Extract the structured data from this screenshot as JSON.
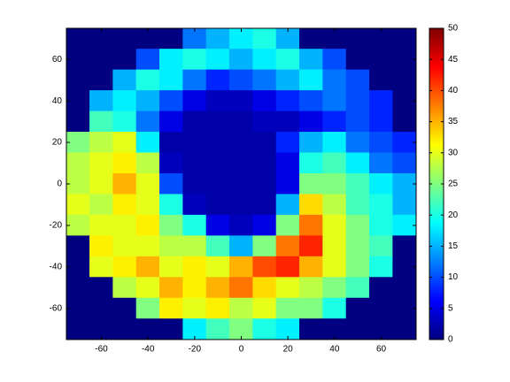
{
  "chart_data": {
    "type": "heatmap",
    "x": [
      -70,
      -60,
      -50,
      -40,
      -30,
      -20,
      -10,
      0,
      10,
      20,
      30,
      40,
      50,
      60,
      70
    ],
    "y": [
      70,
      60,
      50,
      40,
      30,
      20,
      10,
      0,
      -10,
      -20,
      -30,
      -40,
      -50,
      -60,
      -70
    ],
    "z": [
      [
        0,
        0,
        0,
        0,
        0,
        12,
        15,
        18,
        20,
        15,
        0,
        0,
        0,
        0,
        0
      ],
      [
        0,
        0,
        0,
        10,
        18,
        20,
        18,
        15,
        18,
        20,
        15,
        10,
        0,
        0,
        0
      ],
      [
        0,
        0,
        15,
        20,
        18,
        12,
        8,
        10,
        12,
        15,
        18,
        12,
        10,
        0,
        0
      ],
      [
        0,
        15,
        18,
        15,
        10,
        5,
        3,
        3,
        5,
        8,
        10,
        12,
        10,
        8,
        0
      ],
      [
        0,
        22,
        20,
        12,
        5,
        2,
        2,
        2,
        3,
        3,
        5,
        8,
        10,
        8,
        0
      ],
      [
        25,
        28,
        30,
        18,
        2,
        2,
        2,
        2,
        2,
        8,
        15,
        18,
        12,
        10,
        8
      ],
      [
        28,
        30,
        32,
        28,
        3,
        2,
        2,
        2,
        2,
        5,
        20,
        22,
        18,
        12,
        10
      ],
      [
        28,
        30,
        35,
        30,
        10,
        2,
        2,
        2,
        2,
        5,
        25,
        25,
        22,
        18,
        15
      ],
      [
        30,
        28,
        32,
        30,
        20,
        3,
        2,
        2,
        2,
        15,
        33,
        28,
        22,
        20,
        15
      ],
      [
        28,
        30,
        30,
        32,
        25,
        20,
        5,
        3,
        5,
        25,
        38,
        30,
        25,
        20,
        18
      ],
      [
        0,
        32,
        30,
        30,
        28,
        28,
        22,
        15,
        25,
        38,
        42,
        30,
        25,
        22,
        0
      ],
      [
        0,
        30,
        32,
        35,
        30,
        32,
        30,
        35,
        40,
        42,
        35,
        30,
        25,
        20,
        0
      ],
      [
        0,
        0,
        28,
        30,
        35,
        32,
        35,
        38,
        33,
        30,
        28,
        25,
        22,
        0,
        0
      ],
      [
        0,
        0,
        0,
        25,
        32,
        30,
        32,
        28,
        30,
        25,
        25,
        20,
        0,
        0,
        0
      ],
      [
        0,
        0,
        0,
        0,
        0,
        18,
        22,
        25,
        20,
        18,
        0,
        0,
        0,
        0,
        0
      ]
    ],
    "xlim": [
      -75,
      75
    ],
    "ylim": [
      -75,
      75
    ],
    "xticks": [
      -60,
      -40,
      -20,
      0,
      20,
      40,
      60
    ],
    "yticks": [
      -60,
      -40,
      -20,
      0,
      20,
      40,
      60
    ],
    "clim": [
      0,
      50
    ],
    "colorbar_ticks": [
      0,
      5,
      10,
      15,
      20,
      25,
      30,
      35,
      40,
      45,
      50
    ],
    "colormap": "jet"
  }
}
